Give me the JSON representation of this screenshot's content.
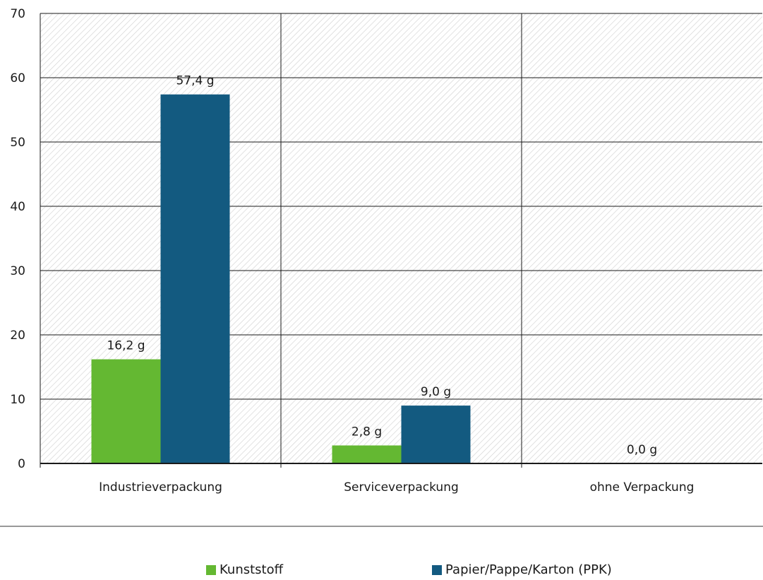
{
  "chart_data": {
    "type": "bar",
    "categories": [
      "Industrieverpackung",
      "Serviceverpackung",
      "ohne Verpackung"
    ],
    "series": [
      {
        "name": "Kunststoff",
        "values": [
          16.2,
          2.8,
          0.0
        ],
        "color": "#64b832"
      },
      {
        "name": "Papier/Pappe/Karton (PPK)",
        "values": [
          57.4,
          9.0,
          0.0
        ],
        "color": "#135a80"
      }
    ],
    "data_labels": {
      "Industrieverpackung": [
        "16,2 g",
        "57,4 g"
      ],
      "Serviceverpackung": [
        "2,8 g",
        "9,0 g"
      ],
      "ohne Verpackung": [
        "0,0 g"
      ]
    },
    "yticks": [
      "0",
      "10",
      "20",
      "30",
      "40",
      "50",
      "60",
      "70"
    ],
    "ylim": [
      0,
      70
    ],
    "grid": true,
    "legend_position": "bottom",
    "title": "",
    "xlabel": "",
    "ylabel": ""
  }
}
